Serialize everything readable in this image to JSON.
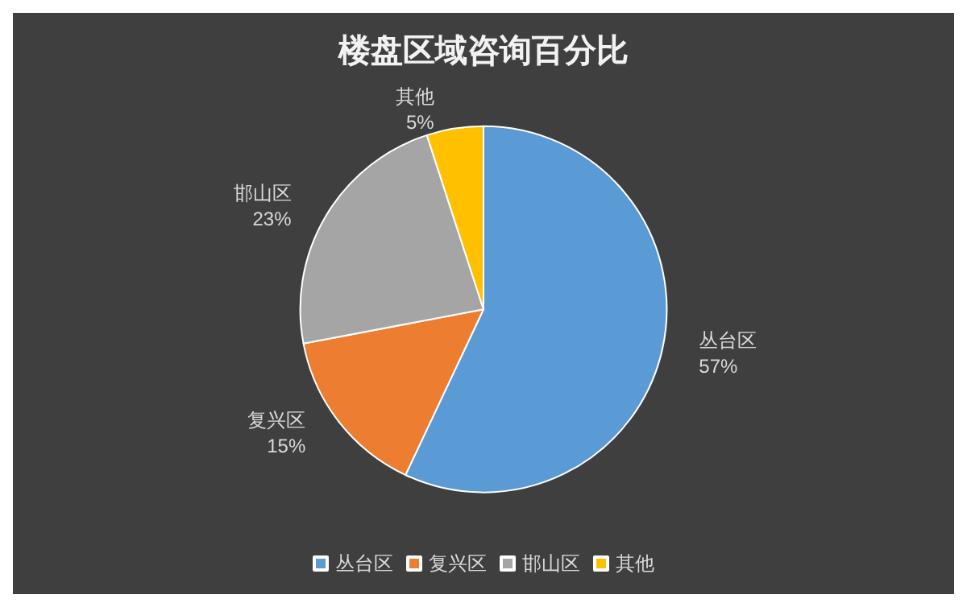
{
  "chart_data": {
    "type": "pie",
    "title": "楼盘区域咨询百分比",
    "categories": [
      "丛台区",
      "复兴区",
      "邯山区",
      "其他"
    ],
    "values": [
      57,
      15,
      23,
      5
    ],
    "colors": [
      "#5b9bd5",
      "#ed7d31",
      "#a5a5a5",
      "#ffc000"
    ],
    "value_labels": [
      "57%",
      "15%",
      "23%",
      "5%"
    ],
    "legend": "bottom"
  }
}
